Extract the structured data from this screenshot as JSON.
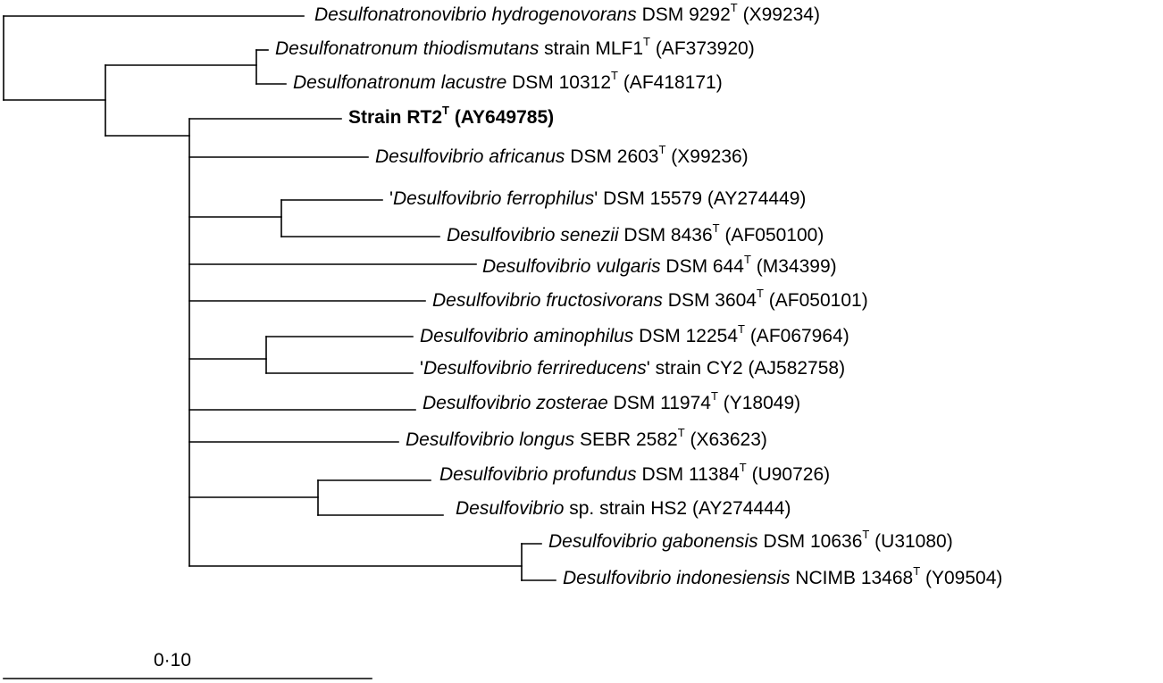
{
  "taxa": [
    {
      "id": "t1",
      "pre": "",
      "species": "Desulfonatronovibrio hydrogenovorans",
      "rest": " DSM 9292",
      "sup": "T",
      "acc": " (X99234)",
      "bold": false
    },
    {
      "id": "t2",
      "pre": "",
      "species": "Desulfonatronum thiodismutans",
      "rest": " strain MLF1",
      "sup": "T",
      "acc": " (AF373920)",
      "bold": false
    },
    {
      "id": "t3",
      "pre": "",
      "species": "Desulfonatronum lacustre",
      "rest": " DSM 10312",
      "sup": "T",
      "acc": " (AF418171)",
      "bold": false
    },
    {
      "id": "t4",
      "pre": "",
      "species": "",
      "rest": "Strain RT2",
      "sup": "T",
      "acc": " (AY649785)",
      "bold": true
    },
    {
      "id": "t5",
      "pre": "",
      "species": "Desulfovibrio africanus",
      "rest": " DSM 2603",
      "sup": "T",
      "acc": " (X99236)",
      "bold": false
    },
    {
      "id": "t6",
      "pre": "'",
      "species": "Desulfovibrio ferrophilus",
      "rest": "' DSM 15579",
      "sup": "",
      "acc": " (AY274449)",
      "bold": false
    },
    {
      "id": "t7",
      "pre": "",
      "species": "Desulfovibrio senezii",
      "rest": " DSM 8436",
      "sup": "T",
      "acc": " (AF050100)",
      "bold": false
    },
    {
      "id": "t8",
      "pre": "",
      "species": "Desulfovibrio vulgaris",
      "rest": " DSM 644",
      "sup": "T",
      "acc": " (M34399)",
      "bold": false
    },
    {
      "id": "t9",
      "pre": "",
      "species": "Desulfovibrio fructosivorans",
      "rest": " DSM 3604",
      "sup": "T",
      "acc": " (AF050101)",
      "bold": false
    },
    {
      "id": "t10",
      "pre": "",
      "species": "Desulfovibrio aminophilus",
      "rest": " DSM 12254",
      "sup": "T",
      "acc": " (AF067964)",
      "bold": false
    },
    {
      "id": "t11",
      "pre": "'",
      "species": "Desulfovibrio ferrireducens",
      "rest": "' strain CY2",
      "sup": "",
      "acc": " (AJ582758)",
      "bold": false
    },
    {
      "id": "t12",
      "pre": "",
      "species": "Desulfovibrio zosterae",
      "rest": " DSM 11974",
      "sup": "T",
      "acc": " (Y18049)",
      "bold": false
    },
    {
      "id": "t13",
      "pre": "",
      "species": "Desulfovibrio longus",
      "rest": " SEBR 2582",
      "sup": "T",
      "acc": " (X63623)",
      "bold": false
    },
    {
      "id": "t14",
      "pre": "",
      "species": "Desulfovibrio profundus",
      "rest": " DSM 11384",
      "sup": "T",
      "acc": " (U90726)",
      "bold": false
    },
    {
      "id": "t15",
      "pre": "",
      "species": "Desulfovibrio",
      "rest": " sp. strain HS2",
      "sup": "",
      "acc": " (AY274444)",
      "bold": false
    },
    {
      "id": "t16",
      "pre": "",
      "species": "Desulfovibrio gabonensis",
      "rest": " DSM 10636",
      "sup": "T",
      "acc": " (U31080)",
      "bold": false
    },
    {
      "id": "t17",
      "pre": "",
      "species": "Desulfovibrio indonesiensis",
      "rest": " NCIMB 13468",
      "sup": "T",
      "acc": " (Y09504)",
      "bold": false
    }
  ],
  "scale_bar": {
    "label": "0·10"
  }
}
